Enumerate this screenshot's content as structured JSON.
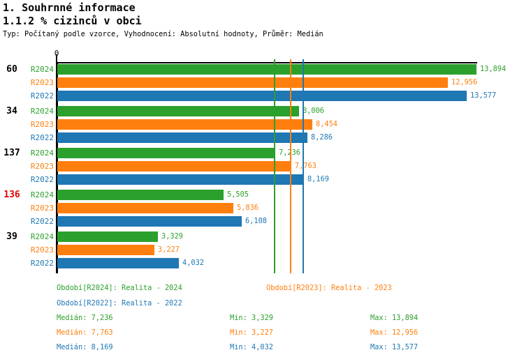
{
  "header": {
    "title": "1. Souhrnné informace",
    "subtitle": "1.1.2 % cizinců v obci",
    "meta": "Typ: Počítaný podle vzorce, Vyhodnocení: Absolutní hodnoty, Průměr: Medián"
  },
  "chart_data": {
    "type": "bar",
    "orientation": "horizontal",
    "axis_origin_label": "0",
    "xlim": [
      0,
      13894
    ],
    "grid": false,
    "categories": [
      "60",
      "34",
      "137",
      "136",
      "39"
    ],
    "category_colors": [
      "#000000",
      "#000000",
      "#000000",
      "#dd0000",
      "#000000"
    ],
    "series": [
      {
        "name": "R2024",
        "color": "#2ca02c",
        "values": [
          13894,
          8006,
          7236,
          5505,
          3329
        ]
      },
      {
        "name": "R2023",
        "color": "#ff7f0e",
        "values": [
          12956,
          8454,
          7763,
          5836,
          3227
        ]
      },
      {
        "name": "R2022",
        "color": "#1f77b4",
        "values": [
          13577,
          8286,
          8169,
          6108,
          4032
        ]
      }
    ],
    "median_lines": [
      {
        "series": "R2024",
        "value": 7236,
        "color": "#2ca02c"
      },
      {
        "series": "R2023",
        "value": 7763,
        "color": "#ff7f0e"
      },
      {
        "series": "R2022",
        "value": 8169,
        "color": "#1f77b4"
      }
    ]
  },
  "legend": {
    "items": [
      {
        "text": "Období[R2024]: Realita - 2024",
        "color": "#2ca02c"
      },
      {
        "text": "Období[R2023]: Realita - 2023",
        "color": "#ff7f0e"
      },
      {
        "text": "Období[R2022]: Realita - 2022",
        "color": "#1f77b4"
      }
    ]
  },
  "stats": {
    "rows": [
      {
        "median": "Medián: 7,236",
        "min": "Min: 3,329",
        "max": "Max: 13,894",
        "color": "#2ca02c"
      },
      {
        "median": "Medián: 7,763",
        "min": "Min: 3,227",
        "max": "Max: 12,956",
        "color": "#ff7f0e"
      },
      {
        "median": "Medián: 8,169",
        "min": "Min: 4,032",
        "max": "Max: 13,577",
        "color": "#1f77b4"
      }
    ]
  }
}
